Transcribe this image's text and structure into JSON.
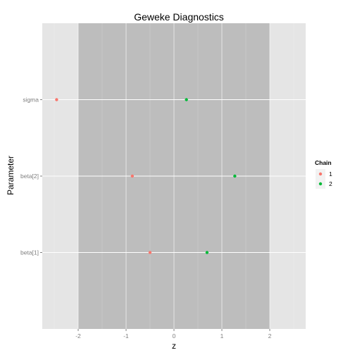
{
  "chart_data": {
    "type": "scatter",
    "title": "Geweke Diagnostics",
    "xlabel": "z",
    "ylabel": "Parameter",
    "xlim": [
      -2.75,
      2.75
    ],
    "xticks": [
      -2,
      -1,
      0,
      1,
      2
    ],
    "categories": [
      "beta[1]",
      "beta[2]",
      "sigma"
    ],
    "shaded_region": {
      "from": -2,
      "to": 2,
      "color": "#bdbdbd"
    },
    "panel_background": "#e5e5e5",
    "grid": true,
    "legend": {
      "title": "Chain",
      "position": "right"
    },
    "series": [
      {
        "name": "1",
        "color": "#f8766d",
        "points": [
          {
            "x": -2.45,
            "y": "sigma"
          },
          {
            "x": -0.87,
            "y": "beta[2]"
          },
          {
            "x": -0.5,
            "y": "beta[1]"
          }
        ]
      },
      {
        "name": "2",
        "color": "#00ba38",
        "points": [
          {
            "x": 0.26,
            "y": "sigma"
          },
          {
            "x": 1.27,
            "y": "beta[2]"
          },
          {
            "x": 0.69,
            "y": "beta[1]"
          }
        ]
      }
    ]
  }
}
